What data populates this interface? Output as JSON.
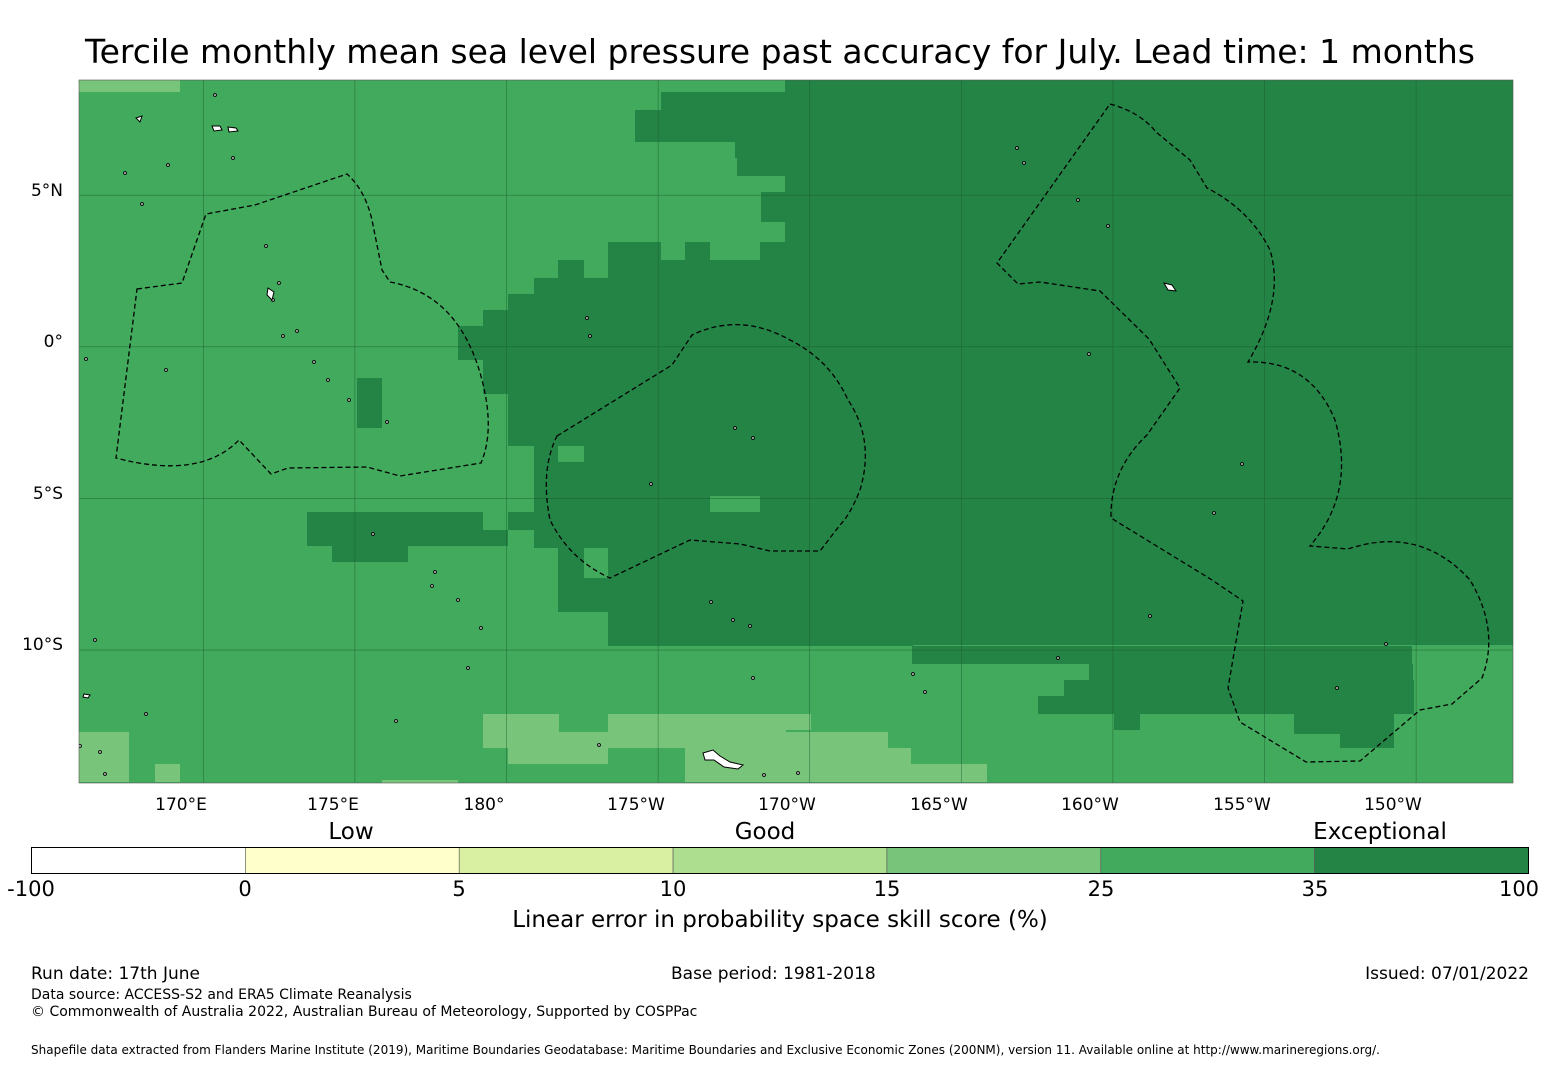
{
  "title": "Tercile monthly mean sea level pressure past accuracy for July. Lead time: 1 months",
  "map": {
    "lon_range": [
      165.9,
      -146.7
    ],
    "lat_range": [
      -14.4,
      8.8
    ],
    "lat_ticks": [
      {
        "lat": 5,
        "label": "5°N"
      },
      {
        "lat": 0,
        "label": "0°"
      },
      {
        "lat": -5,
        "label": "5°S"
      },
      {
        "lat": -10,
        "label": "10°S"
      }
    ],
    "lon_ticks": [
      {
        "lon": 170,
        "label": "170°E"
      },
      {
        "lon": 175,
        "label": "175°E"
      },
      {
        "lon": 180,
        "label": "180°"
      },
      {
        "lon": -175,
        "label": "175°W"
      },
      {
        "lon": -170,
        "label": "170°W"
      },
      {
        "lon": -165,
        "label": "165°W"
      },
      {
        "lon": -160,
        "label": "160°W"
      },
      {
        "lon": -155,
        "label": "155°W"
      },
      {
        "lon": -150,
        "label": "150°W"
      }
    ],
    "colors": {
      "c25_35": "#41aa5c",
      "c35_100": "#238445",
      "c15_25": "#78c47a",
      "c10_15": "#addd8e",
      "land": "#ffffff",
      "coast": "#000000",
      "eez": "#000000",
      "grid": "#1d5a2e"
    }
  },
  "colorbar": {
    "categories": [
      {
        "label": "Low",
        "value": 2.5
      },
      {
        "label": "Good",
        "value": 12.5
      },
      {
        "label": "Exceptional",
        "value": 67.5
      }
    ],
    "bins": [
      {
        "from": -100,
        "to": 0,
        "color": "#ffffff"
      },
      {
        "from": 0,
        "to": 5,
        "color": "#ffffcc"
      },
      {
        "from": 5,
        "to": 10,
        "color": "#d9f0a3"
      },
      {
        "from": 10,
        "to": 15,
        "color": "#addd8e"
      },
      {
        "from": 15,
        "to": 25,
        "color": "#78c47a"
      },
      {
        "from": 25,
        "to": 35,
        "color": "#41aa5c"
      },
      {
        "from": 35,
        "to": 100,
        "color": "#238445"
      }
    ],
    "ticks": [
      "-100",
      "0",
      "5",
      "10",
      "15",
      "25",
      "35",
      "100"
    ],
    "label": "Linear error in probability space skill score (%)"
  },
  "footer": {
    "run_date": "Run date: 17th June",
    "base_period": "Base period: 1981-2018",
    "issued": "Issued: 07/01/2022",
    "data_source": "Data source: ACCESS-S2 and ERA5 Climate Reanalysis",
    "copyright": "© Commonwealth of Australia 2022, Australian Bureau of Meteorology, Supported by COSPPac",
    "shapefile": "Shapefile data extracted from Flanders Marine Institute (2019), Maritime Boundaries Geodatabase: Maritime Boundaries and Exclusive Economic Zones (200NM), version 11. Available online at http://www.marineregions.org/."
  }
}
